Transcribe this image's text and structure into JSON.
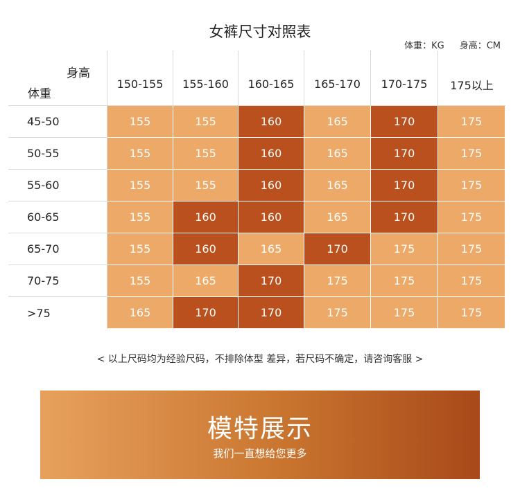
{
  "title": "女裤尺寸对照表",
  "units": {
    "weight": "体重：KG",
    "height": "身高：CM"
  },
  "table": {
    "height_label": "身高",
    "weight_label": "体重",
    "columns": [
      "150-155",
      "155-160",
      "160-165",
      "165-170",
      "170-175",
      "175以上"
    ],
    "rows": [
      {
        "label": "45-50",
        "cells": [
          {
            "v": "155",
            "tone": "light"
          },
          {
            "v": "155",
            "tone": "light"
          },
          {
            "v": "160",
            "tone": "dark"
          },
          {
            "v": "165",
            "tone": "light"
          },
          {
            "v": "170",
            "tone": "dark"
          },
          {
            "v": "175",
            "tone": "light"
          }
        ]
      },
      {
        "label": "50-55",
        "cells": [
          {
            "v": "155",
            "tone": "light"
          },
          {
            "v": "155",
            "tone": "light"
          },
          {
            "v": "160",
            "tone": "dark"
          },
          {
            "v": "165",
            "tone": "light"
          },
          {
            "v": "170",
            "tone": "dark"
          },
          {
            "v": "175",
            "tone": "light"
          }
        ]
      },
      {
        "label": "55-60",
        "cells": [
          {
            "v": "155",
            "tone": "light"
          },
          {
            "v": "155",
            "tone": "light"
          },
          {
            "v": "160",
            "tone": "dark"
          },
          {
            "v": "165",
            "tone": "light"
          },
          {
            "v": "170",
            "tone": "dark"
          },
          {
            "v": "175",
            "tone": "light"
          }
        ]
      },
      {
        "label": "60-65",
        "cells": [
          {
            "v": "155",
            "tone": "light"
          },
          {
            "v": "160",
            "tone": "dark"
          },
          {
            "v": "160",
            "tone": "dark"
          },
          {
            "v": "165",
            "tone": "light"
          },
          {
            "v": "170",
            "tone": "dark"
          },
          {
            "v": "175",
            "tone": "light"
          }
        ]
      },
      {
        "label": "65-70",
        "cells": [
          {
            "v": "155",
            "tone": "light"
          },
          {
            "v": "160",
            "tone": "dark"
          },
          {
            "v": "165",
            "tone": "light"
          },
          {
            "v": "170",
            "tone": "dark"
          },
          {
            "v": "175",
            "tone": "light"
          },
          {
            "v": "175",
            "tone": "light"
          }
        ]
      },
      {
        "label": "70-75",
        "cells": [
          {
            "v": "155",
            "tone": "light"
          },
          {
            "v": "165",
            "tone": "light"
          },
          {
            "v": "170",
            "tone": "dark"
          },
          {
            "v": "175",
            "tone": "light"
          },
          {
            "v": "175",
            "tone": "light"
          },
          {
            "v": "175",
            "tone": "light"
          }
        ]
      },
      {
        "label": ">75",
        "cells": [
          {
            "v": "165",
            "tone": "light"
          },
          {
            "v": "170",
            "tone": "dark"
          },
          {
            "v": "170",
            "tone": "dark"
          },
          {
            "v": "175",
            "tone": "light"
          },
          {
            "v": "175",
            "tone": "light"
          },
          {
            "v": "175",
            "tone": "light"
          }
        ]
      }
    ]
  },
  "note": "< 以上尺码均为经验尺码，不排除体型 差异，若尺码不确定，请咨询客服 >",
  "banner": {
    "title": "模特展示",
    "subtitle": "我们一直想给您更多"
  },
  "colors": {
    "cell_light": "#eda967",
    "cell_dark": "#b9501d",
    "banner_start": "#e7a15d",
    "banner_end": "#a8491a"
  }
}
